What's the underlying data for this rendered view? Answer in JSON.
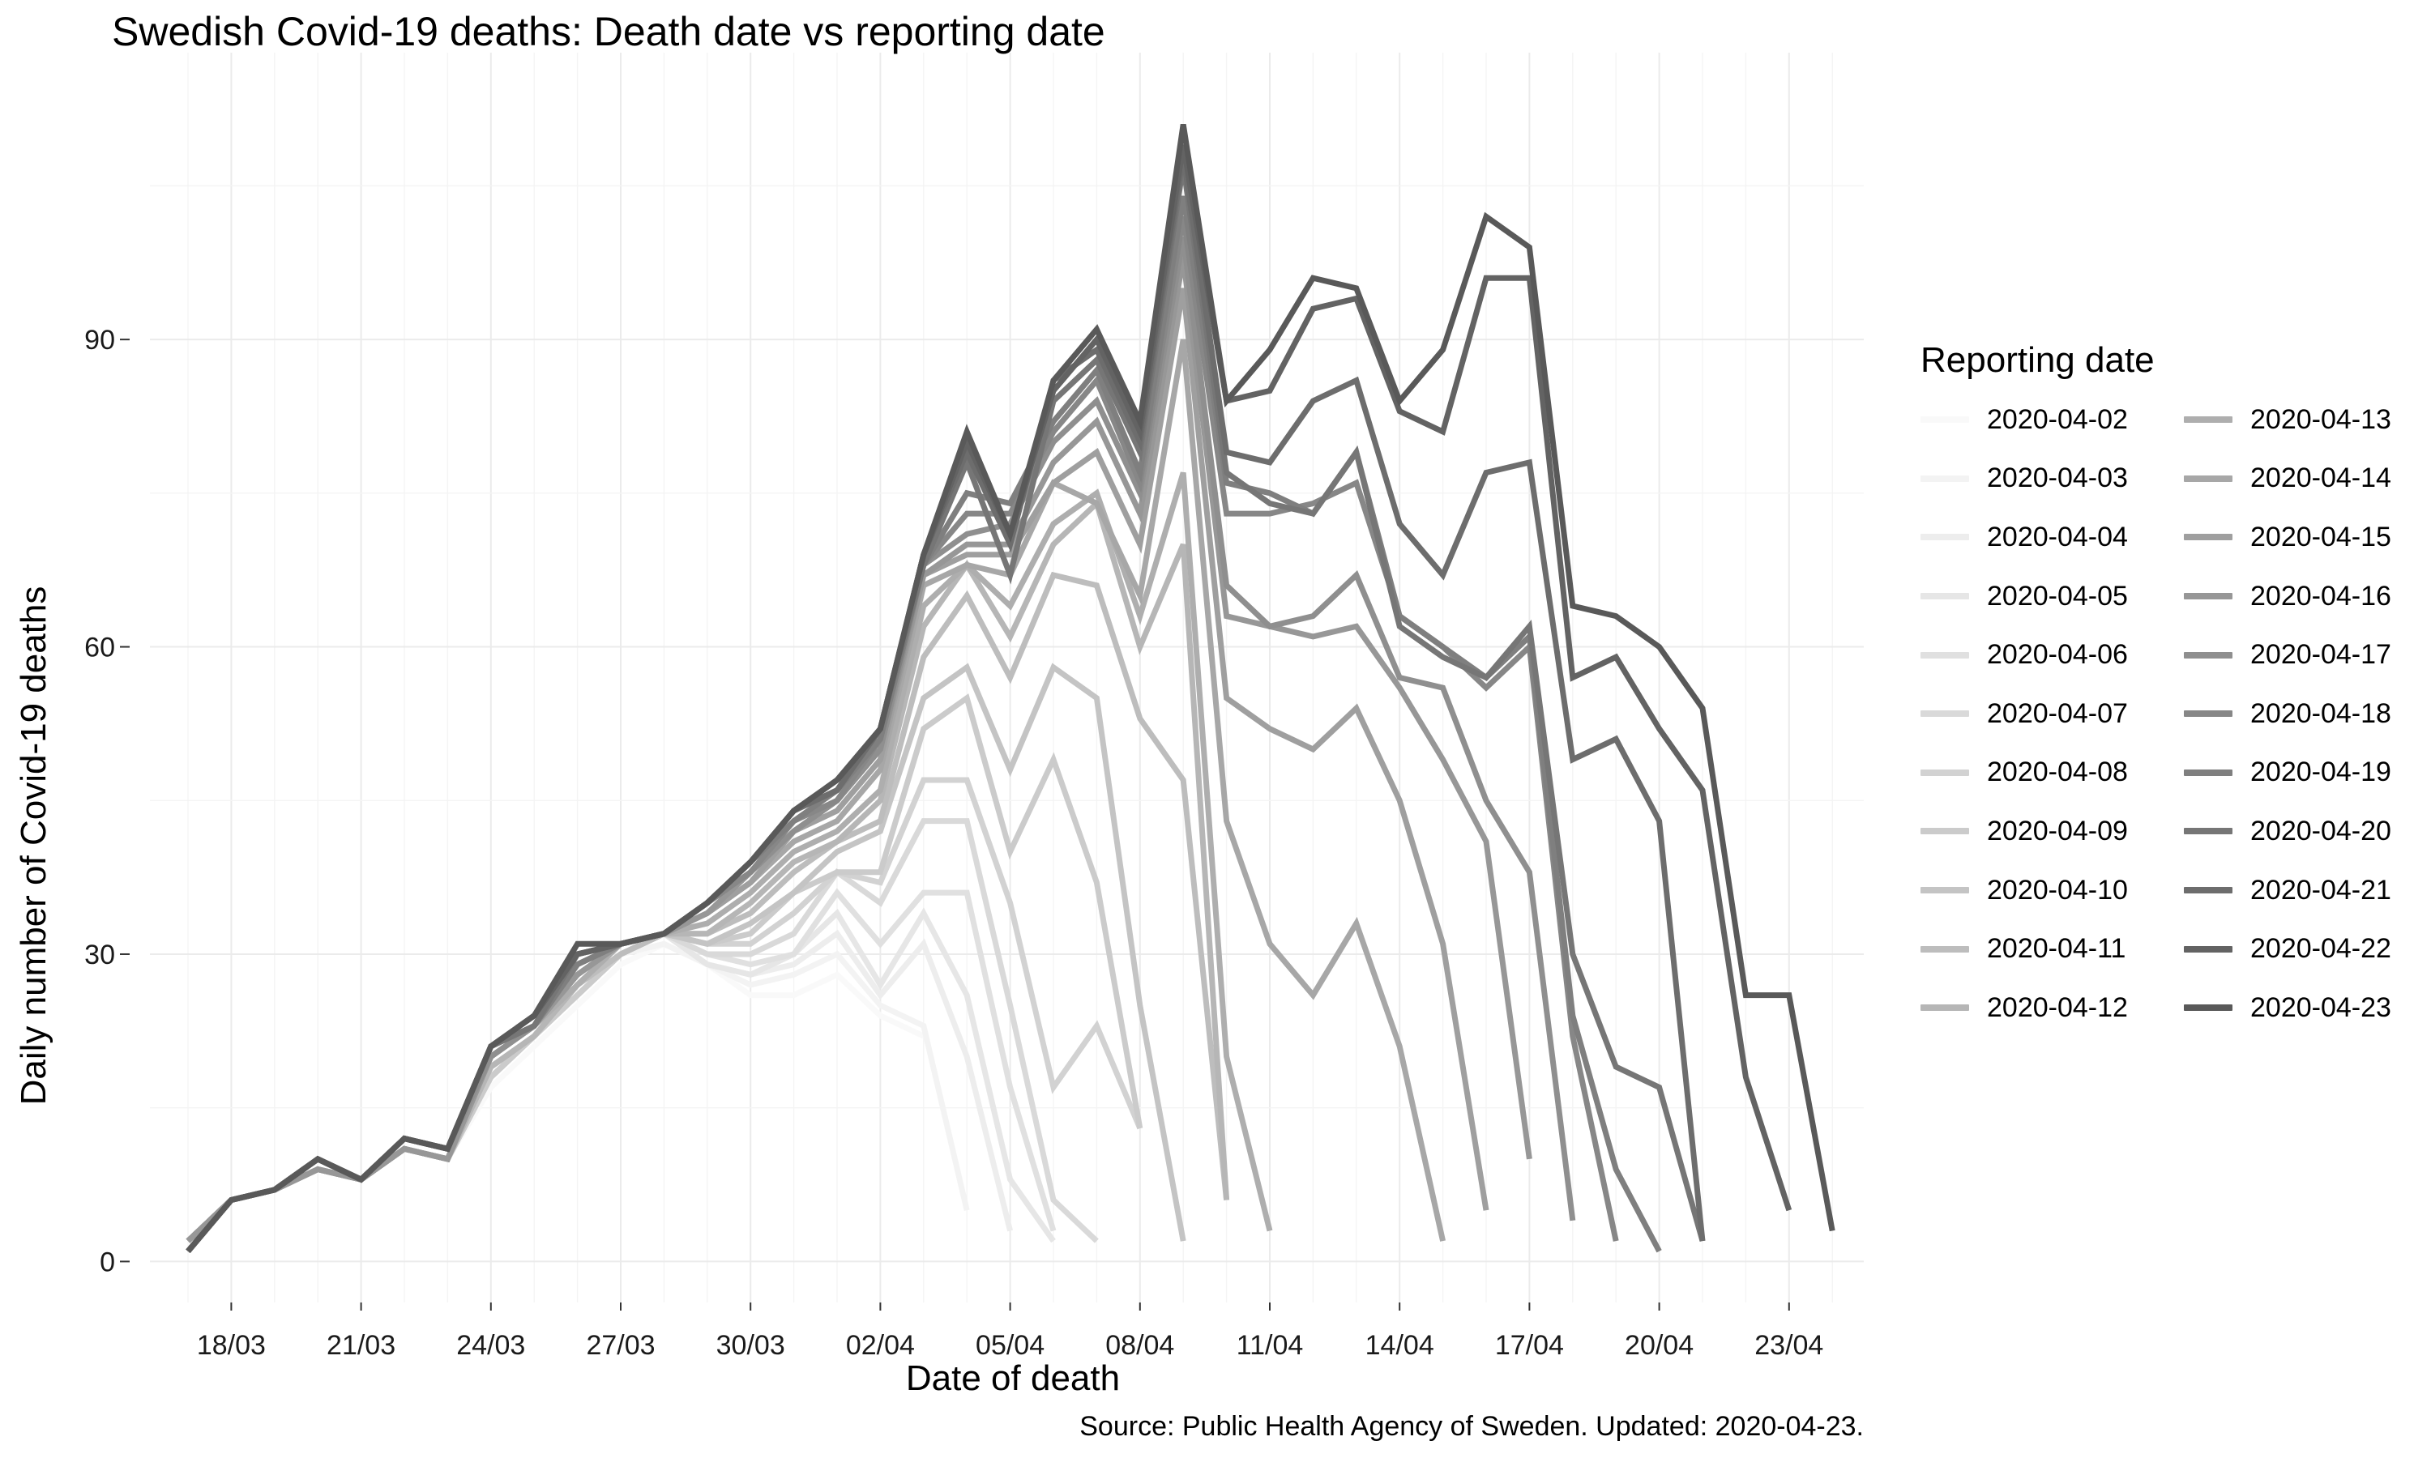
{
  "title": "Swedish Covid-19 deaths: Death date vs reporting date",
  "caption": "Source: Public Health Agency of Sweden. Updated: 2020-04-23.",
  "legend_title": "Reporting date",
  "chart_data": {
    "type": "line",
    "title": "Swedish Covid-19 deaths: Death date vs reporting date",
    "xlabel": "Date of death",
    "ylabel": "Daily number of Covid-19 deaths",
    "x_tick_labels": [
      "18/03",
      "21/03",
      "24/03",
      "27/03",
      "30/03",
      "02/04",
      "05/04",
      "08/04",
      "11/04",
      "14/04",
      "17/04",
      "20/04",
      "23/04"
    ],
    "y_tick_labels": [
      "0",
      "30",
      "60",
      "90"
    ],
    "ylim": [
      -4,
      118
    ],
    "grid": true,
    "legend": "right",
    "colors": [
      "#f9f9f9",
      "#f3f3f3",
      "#ededed",
      "#e6e6e6",
      "#e0e0e0",
      "#d9d9d9",
      "#d2d2d2",
      "#cbcbcb",
      "#c4c4c4",
      "#bdbdbd",
      "#b6b6b6",
      "#aeaeae",
      "#a7a7a7",
      "#9f9f9f",
      "#979797",
      "#8f8f8f",
      "#878787",
      "#7f7f7f",
      "#767676",
      "#6d6d6d",
      "#636363",
      "#595959"
    ],
    "series": [
      {
        "name": "2020-04-02",
        "start": "2020-03-17",
        "values": [
          2,
          6,
          7,
          9,
          8,
          11,
          10,
          17,
          21,
          25,
          29,
          31,
          29,
          26,
          26,
          28,
          24,
          22
        ]
      },
      {
        "name": "2020-04-03",
        "start": "2020-03-17",
        "values": [
          2,
          6,
          7,
          9,
          8,
          11,
          10,
          18,
          22,
          26,
          30,
          31,
          29,
          27,
          28,
          30,
          25,
          23,
          5
        ]
      },
      {
        "name": "2020-04-04",
        "start": "2020-03-17",
        "values": [
          2,
          6,
          7,
          9,
          8,
          11,
          10,
          18,
          22,
          26,
          30,
          32,
          29,
          28,
          29,
          32,
          26,
          31,
          20,
          3
        ]
      },
      {
        "name": "2020-04-05",
        "start": "2020-03-17",
        "values": [
          2,
          6,
          7,
          9,
          8,
          11,
          10,
          18,
          22,
          26,
          30,
          32,
          29,
          28,
          30,
          34,
          27,
          34,
          26,
          8,
          2
        ]
      },
      {
        "name": "2020-04-06",
        "start": "2020-03-17",
        "values": [
          2,
          6,
          7,
          9,
          8,
          11,
          10,
          18,
          22,
          26,
          30,
          32,
          30,
          29,
          30,
          36,
          31,
          36,
          36,
          17,
          3
        ]
      },
      {
        "name": "2020-04-07",
        "start": "2020-03-17",
        "values": [
          2,
          6,
          7,
          9,
          8,
          11,
          10,
          18,
          22,
          26,
          30,
          32,
          30,
          30,
          32,
          38,
          35,
          43,
          43,
          25,
          6,
          2
        ]
      },
      {
        "name": "2020-04-08",
        "start": "2020-03-17",
        "values": [
          2,
          6,
          7,
          9,
          8,
          11,
          10,
          18,
          22,
          26,
          30,
          32,
          31,
          31,
          34,
          38,
          37,
          47,
          47,
          35,
          17,
          23,
          13
        ]
      },
      {
        "name": "2020-04-09",
        "start": "2020-03-17",
        "values": [
          2,
          6,
          7,
          9,
          8,
          11,
          10,
          18,
          22,
          26,
          30,
          32,
          31,
          32,
          36,
          38,
          38,
          52,
          55,
          40,
          49,
          37,
          13
        ]
      },
      {
        "name": "2020-04-10",
        "start": "2020-03-17",
        "values": [
          2,
          6,
          7,
          9,
          8,
          11,
          10,
          19,
          22,
          27,
          30,
          32,
          31,
          33,
          36,
          40,
          42,
          55,
          58,
          48,
          58,
          55,
          25,
          2
        ]
      },
      {
        "name": "2020-04-11",
        "start": "2020-03-17",
        "values": [
          2,
          6,
          7,
          9,
          8,
          11,
          10,
          19,
          22,
          27,
          30,
          32,
          32,
          34,
          38,
          41,
          43,
          59,
          65,
          57,
          67,
          66,
          53,
          47,
          6
        ]
      },
      {
        "name": "2020-04-12",
        "start": "2020-03-17",
        "values": [
          2,
          6,
          7,
          9,
          8,
          11,
          10,
          19,
          22,
          27,
          31,
          32,
          32,
          35,
          39,
          41,
          45,
          62,
          68,
          61,
          70,
          74,
          60,
          70,
          6
        ]
      },
      {
        "name": "2020-04-13",
        "start": "2020-03-17",
        "values": [
          2,
          6,
          7,
          9,
          8,
          11,
          10,
          20,
          23,
          27,
          31,
          32,
          33,
          36,
          40,
          42,
          46,
          64,
          68,
          64,
          72,
          75,
          63,
          77,
          20,
          3
        ]
      },
      {
        "name": "2020-04-14",
        "start": "2020-03-17",
        "values": [
          2,
          6,
          7,
          9,
          8,
          11,
          10,
          20,
          23,
          28,
          31,
          32,
          34,
          37,
          41,
          43,
          48,
          66,
          68,
          67,
          76,
          74,
          65,
          90,
          43,
          31,
          26,
          33,
          21,
          2
        ]
      },
      {
        "name": "2020-04-15",
        "start": "2020-03-17",
        "values": [
          2,
          6,
          7,
          9,
          8,
          11,
          10,
          20,
          23,
          28,
          31,
          32,
          34,
          37,
          42,
          44,
          49,
          67,
          69,
          69,
          76,
          79,
          70,
          95,
          55,
          52,
          50,
          54,
          45,
          31,
          5
        ]
      },
      {
        "name": "2020-04-16",
        "start": "2020-03-17",
        "values": [
          2,
          6,
          7,
          9,
          8,
          11,
          10,
          20,
          23,
          28,
          31,
          32,
          34,
          38,
          42,
          45,
          50,
          67,
          70,
          70,
          78,
          82,
          73,
          98,
          63,
          62,
          61,
          62,
          56,
          49,
          41,
          10
        ]
      },
      {
        "name": "2020-04-17",
        "start": "2020-03-17",
        "values": [
          1,
          6,
          7,
          10,
          8,
          12,
          11,
          20,
          23,
          29,
          31,
          32,
          35,
          38,
          42,
          45,
          50,
          68,
          71,
          72,
          80,
          84,
          75,
          100,
          66,
          62,
          63,
          67,
          57,
          56,
          45,
          38,
          4
        ]
      },
      {
        "name": "2020-04-18",
        "start": "2020-03-17",
        "values": [
          1,
          6,
          7,
          10,
          8,
          12,
          11,
          21,
          23,
          29,
          31,
          32,
          35,
          38,
          43,
          45,
          51,
          68,
          73,
          73,
          81,
          86,
          76,
          102,
          73,
          73,
          74,
          76,
          63,
          60,
          56,
          60,
          22,
          2
        ]
      },
      {
        "name": "2020-04-19",
        "start": "2020-03-17",
        "values": [
          1,
          6,
          7,
          10,
          8,
          12,
          11,
          21,
          23,
          29,
          31,
          32,
          35,
          39,
          43,
          46,
          51,
          68,
          75,
          74,
          82,
          87,
          77,
          104,
          76,
          75,
          73,
          79,
          63,
          60,
          57,
          61,
          24,
          9,
          1
        ]
      },
      {
        "name": "2020-04-20",
        "start": "2020-03-17",
        "values": [
          1,
          6,
          7,
          10,
          8,
          12,
          11,
          21,
          23,
          30,
          31,
          32,
          35,
          39,
          44,
          46,
          52,
          68,
          78,
          67,
          84,
          88,
          79,
          107,
          77,
          74,
          73,
          79,
          62,
          59,
          57,
          62,
          30,
          19,
          17,
          2
        ]
      },
      {
        "name": "2020-04-21",
        "start": "2020-03-17",
        "values": [
          1,
          6,
          7,
          10,
          8,
          12,
          11,
          21,
          24,
          30,
          31,
          32,
          35,
          39,
          44,
          46,
          52,
          69,
          79,
          70,
          86,
          89,
          80,
          108,
          79,
          78,
          84,
          86,
          72,
          67,
          77,
          78,
          49,
          51,
          43,
          2
        ]
      },
      {
        "name": "2020-04-22",
        "start": "2020-03-17",
        "values": [
          1,
          6,
          7,
          10,
          8,
          12,
          11,
          21,
          24,
          30,
          31,
          32,
          35,
          39,
          44,
          47,
          52,
          69,
          80,
          71,
          85,
          90,
          81,
          109,
          84,
          85,
          93,
          94,
          83,
          81,
          96,
          96,
          57,
          59,
          52,
          46,
          18,
          5
        ]
      },
      {
        "name": "2020-04-23",
        "start": "2020-03-17",
        "values": [
          1,
          6,
          7,
          10,
          8,
          12,
          11,
          21,
          24,
          31,
          31,
          32,
          35,
          39,
          44,
          47,
          52,
          69,
          81,
          71,
          86,
          91,
          82,
          111,
          84,
          89,
          96,
          95,
          84,
          89,
          102,
          99,
          64,
          63,
          60,
          54,
          26,
          26,
          3
        ]
      }
    ]
  }
}
